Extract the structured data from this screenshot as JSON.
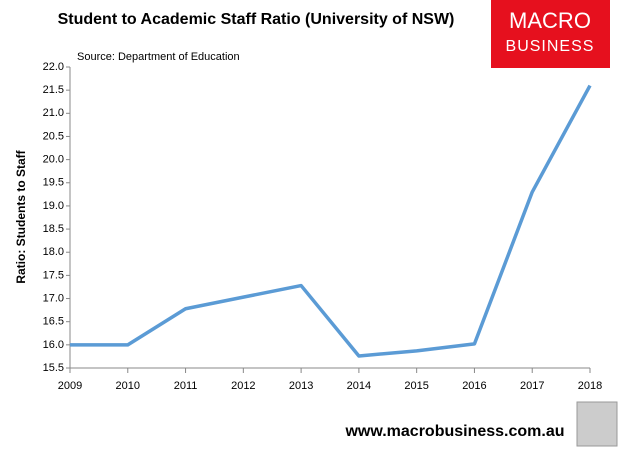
{
  "chart_data": {
    "type": "line",
    "title": "Student to Academic Staff Ratio (University of NSW)",
    "subtitle": "Source: Department of Education",
    "y_label": "Ratio: Students to Staff",
    "categories": [
      "2009",
      "2010",
      "2011",
      "2012",
      "2013",
      "2014",
      "2015",
      "2016",
      "2017",
      "2018"
    ],
    "series": [
      {
        "name": "Ratio",
        "color": "#5b9bd5",
        "values": [
          16.0,
          16.0,
          16.78,
          17.03,
          17.28,
          15.76,
          15.87,
          16.02,
          19.3,
          21.6
        ]
      }
    ],
    "ylim": [
      15.5,
      22
    ],
    "yticks": [
      {
        "value": 15.5,
        "label": "15.5"
      },
      {
        "value": 16,
        "label": "16.0"
      },
      16.5,
      {
        "value": 17,
        "label": "17.0"
      },
      17.5,
      {
        "value": 18,
        "label": "18.0"
      },
      18.5,
      {
        "value": 19,
        "label": "19.0"
      },
      19.5,
      {
        "value": 20,
        "label": "20.0"
      },
      20.5,
      {
        "value": 21,
        "label": "21.0"
      },
      21.5,
      {
        "value": 22,
        "label": "22.0"
      }
    ],
    "grid": false,
    "legend": false,
    "footer": "www.macrobusiness.com.au",
    "logo": {
      "line1": "MACRO",
      "line2": "BUSINESS"
    }
  }
}
